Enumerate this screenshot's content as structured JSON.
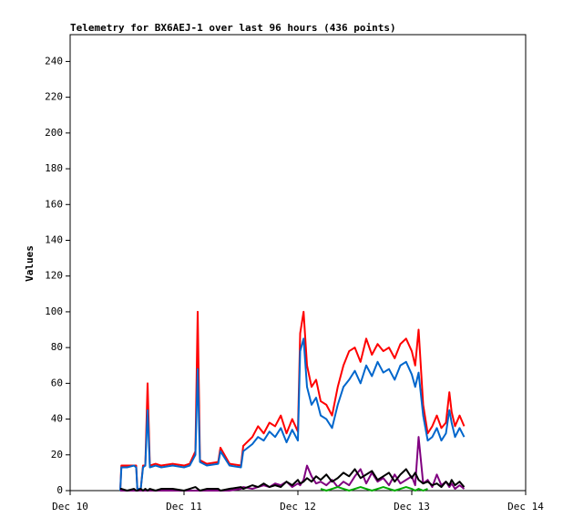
{
  "chart_data": {
    "type": "line",
    "title": "Telemetry for BX6AEJ-1 over last 96 hours (436 points)",
    "y_label": "Values",
    "xlim": [
      0,
      4
    ],
    "xticks": [
      {
        "value": 0,
        "label": "Dec 10"
      },
      {
        "value": 1,
        "label": "Dec 11"
      },
      {
        "value": 2,
        "label": "Dec 12"
      },
      {
        "value": 3,
        "label": "Dec 13"
      },
      {
        "value": 4,
        "label": "Dec 14"
      }
    ],
    "ylim": [
      0,
      255
    ],
    "yticks": [
      0,
      20,
      40,
      60,
      80,
      100,
      120,
      140,
      160,
      180,
      200,
      220,
      240
    ],
    "grid": false,
    "x": [
      0.44,
      0.45,
      0.5,
      0.56,
      0.58,
      0.59,
      0.62,
      0.64,
      0.66,
      0.68,
      0.7,
      0.75,
      0.8,
      0.9,
      1.0,
      1.05,
      1.1,
      1.12,
      1.14,
      1.2,
      1.3,
      1.32,
      1.4,
      1.5,
      1.52,
      1.6,
      1.65,
      1.7,
      1.75,
      1.8,
      1.85,
      1.9,
      1.95,
      2.0,
      2.02,
      2.05,
      2.08,
      2.12,
      2.16,
      2.2,
      2.25,
      2.3,
      2.35,
      2.4,
      2.45,
      2.5,
      2.55,
      2.6,
      2.65,
      2.7,
      2.75,
      2.8,
      2.85,
      2.9,
      2.95,
      3.0,
      3.03,
      3.06,
      3.1,
      3.14,
      3.18,
      3.22,
      3.26,
      3.3,
      3.33,
      3.35,
      3.38,
      3.42,
      3.46
    ],
    "series": [
      {
        "color": "#ff0000",
        "values": [
          0,
          14,
          14,
          14,
          14,
          1,
          1,
          14,
          14,
          60,
          14,
          15,
          14,
          15,
          14,
          15,
          22,
          100,
          17,
          15,
          16,
          24,
          15,
          14,
          25,
          30,
          36,
          32,
          38,
          36,
          42,
          32,
          40,
          33,
          88,
          100,
          70,
          58,
          62,
          50,
          48,
          42,
          58,
          70,
          78,
          80,
          72,
          85,
          76,
          82,
          78,
          80,
          74,
          82,
          85,
          78,
          70,
          90,
          48,
          32,
          36,
          42,
          35,
          38,
          55,
          44,
          36,
          42,
          36
        ]
      },
      {
        "color": "#0066cc",
        "values": [
          0,
          13,
          13,
          14,
          13,
          1,
          1,
          13,
          14,
          45,
          13,
          14,
          13,
          14,
          13,
          14,
          20,
          68,
          16,
          14,
          15,
          22,
          14,
          13,
          22,
          26,
          30,
          28,
          33,
          30,
          35,
          27,
          34,
          28,
          78,
          85,
          58,
          48,
          52,
          42,
          40,
          35,
          48,
          58,
          62,
          67,
          60,
          70,
          64,
          72,
          66,
          68,
          62,
          70,
          72,
          65,
          58,
          66,
          42,
          28,
          30,
          35,
          28,
          32,
          45,
          38,
          30,
          35,
          30
        ]
      },
      {
        "color": "#800080",
        "values": [
          0,
          0,
          0,
          0,
          0,
          0,
          0,
          0,
          0,
          0,
          0,
          0,
          0,
          0,
          0,
          0,
          0,
          0,
          0,
          0,
          0,
          0,
          0,
          1,
          2,
          1,
          2,
          3,
          2,
          4,
          3,
          5,
          2,
          4,
          3,
          6,
          14,
          8,
          4,
          5,
          3,
          6,
          2,
          5,
          3,
          8,
          12,
          4,
          10,
          5,
          7,
          3,
          9,
          4,
          6,
          8,
          3,
          30,
          4,
          6,
          2,
          9,
          3,
          5,
          2,
          4,
          1,
          3,
          1
        ]
      },
      {
        "color": "#000000",
        "values": [
          1,
          1,
          0,
          1,
          0,
          0,
          1,
          0,
          1,
          0,
          1,
          0,
          1,
          1,
          0,
          1,
          2,
          1,
          0,
          1,
          1,
          0,
          1,
          2,
          1,
          3,
          2,
          4,
          2,
          3,
          2,
          5,
          3,
          6,
          4,
          5,
          7,
          5,
          8,
          6,
          9,
          5,
          7,
          10,
          8,
          12,
          7,
          9,
          11,
          6,
          8,
          10,
          5,
          9,
          12,
          7,
          10,
          6,
          4,
          5,
          3,
          4,
          2,
          5,
          3,
          6,
          3,
          5,
          2
        ]
      },
      {
        "color": "#00aa00",
        "values": [
          null,
          null,
          null,
          null,
          null,
          null,
          null,
          null,
          null,
          null,
          null,
          null,
          null,
          null,
          null,
          null,
          null,
          null,
          null,
          null,
          null,
          null,
          null,
          null,
          null,
          null,
          null,
          null,
          null,
          null,
          null,
          null,
          null,
          null,
          null,
          null,
          null,
          null,
          null,
          1,
          0,
          1,
          2,
          1,
          0,
          1,
          2,
          1,
          0,
          1,
          2,
          1,
          0,
          1,
          2,
          1,
          0,
          1,
          0,
          1,
          null,
          null,
          null,
          null,
          null,
          null,
          null,
          null,
          null
        ]
      }
    ]
  }
}
